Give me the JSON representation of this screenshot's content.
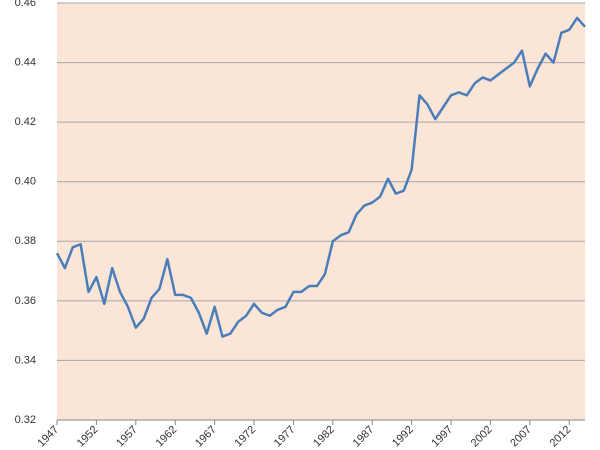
{
  "chart_data": {
    "type": "line",
    "x": [
      1947,
      1948,
      1949,
      1950,
      1951,
      1952,
      1953,
      1954,
      1955,
      1956,
      1957,
      1958,
      1959,
      1960,
      1961,
      1962,
      1963,
      1964,
      1965,
      1966,
      1967,
      1968,
      1969,
      1970,
      1971,
      1972,
      1973,
      1974,
      1975,
      1976,
      1977,
      1978,
      1979,
      1980,
      1981,
      1982,
      1983,
      1984,
      1985,
      1986,
      1987,
      1988,
      1989,
      1990,
      1991,
      1992,
      1993,
      1994,
      1995,
      1996,
      1997,
      1998,
      1999,
      2000,
      2001,
      2002,
      2003,
      2004,
      2005,
      2006,
      2007,
      2008,
      2009,
      2010,
      2011,
      2012,
      2013,
      2014
    ],
    "series": [
      {
        "color": "#4a7ebb",
        "values": [
          0.376,
          0.371,
          0.378,
          0.379,
          0.363,
          0.368,
          0.359,
          0.371,
          0.363,
          0.358,
          0.351,
          0.354,
          0.361,
          0.364,
          0.374,
          0.362,
          0.362,
          0.361,
          0.356,
          0.349,
          0.358,
          0.348,
          0.349,
          0.353,
          0.355,
          0.359,
          0.356,
          0.355,
          0.357,
          0.358,
          0.363,
          0.363,
          0.365,
          0.365,
          0.369,
          0.38,
          0.382,
          0.383,
          0.389,
          0.392,
          0.393,
          0.395,
          0.401,
          0.396,
          0.397,
          0.404,
          0.429,
          0.426,
          0.421,
          0.425,
          0.429,
          0.43,
          0.429,
          0.433,
          0.435,
          0.434,
          0.436,
          0.438,
          0.44,
          0.444,
          0.432,
          0.438,
          0.443,
          0.44,
          0.45,
          0.451,
          0.455,
          0.452
        ]
      }
    ],
    "xlim": [
      1947,
      2014
    ],
    "xticks": [
      1947,
      1952,
      1957,
      1962,
      1967,
      1972,
      1977,
      1982,
      1987,
      1992,
      1997,
      2002,
      2007,
      2012
    ],
    "ylim": [
      0.32,
      0.46
    ],
    "yticks": [
      0.32,
      0.34,
      0.36,
      0.38,
      {
        "value": 0.4,
        "label": "0.40"
      },
      0.42,
      0.44,
      0.46
    ],
    "grid": true,
    "background": "#fbe5d6"
  }
}
